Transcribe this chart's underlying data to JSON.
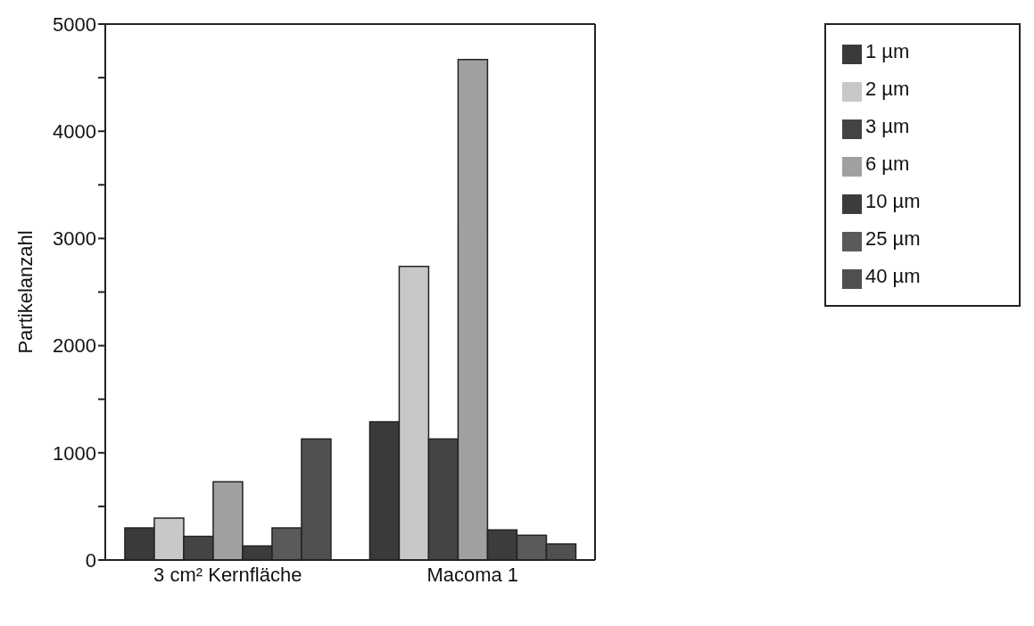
{
  "chart_data": {
    "type": "bar",
    "ylabel": "Partikelanzahl",
    "categories": [
      "3 cm² Kernfläche",
      "Macoma 1"
    ],
    "series": [
      {
        "name": "1 µm",
        "color": "#3a3a3a",
        "values": [
          300,
          1290
        ]
      },
      {
        "name": "2 µm",
        "color": "#c8c8c8",
        "values": [
          390,
          2740
        ]
      },
      {
        "name": "3 µm",
        "color": "#444444",
        "values": [
          220,
          1130
        ]
      },
      {
        "name": "6 µm",
        "color": "#a0a0a0",
        "values": [
          730,
          4670
        ]
      },
      {
        "name": "10 µm",
        "color": "#3c3c3c",
        "values": [
          130,
          280
        ]
      },
      {
        "name": "25 µm",
        "color": "#5a5a5a",
        "values": [
          300,
          230
        ]
      },
      {
        "name": "40 µm",
        "color": "#505050",
        "values": [
          1130,
          150
        ]
      }
    ],
    "ylim": [
      0,
      5000
    ],
    "yticks": [
      0,
      {
        "value": 500,
        "label": null
      },
      1000,
      {
        "value": 1500,
        "label": null
      },
      2000,
      {
        "value": 2500,
        "label": null
      },
      3000,
      {
        "value": 3500,
        "label": null
      },
      4000,
      {
        "value": 4500,
        "label": null
      },
      5000
    ],
    "grid": false,
    "legend": "top right"
  }
}
